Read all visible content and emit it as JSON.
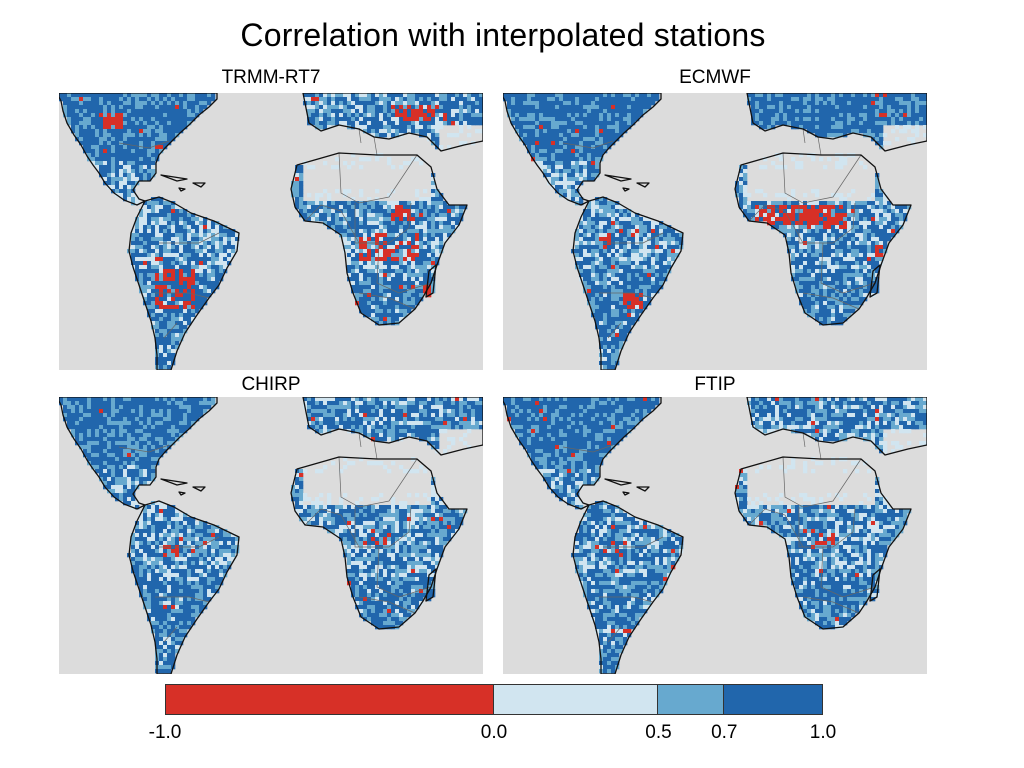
{
  "title": "Correlation with interpolated stations",
  "panels": [
    {
      "label": "TRMM-RT7",
      "red": "high"
    },
    {
      "label": "ECMWF",
      "red": "africa"
    },
    {
      "label": "CHIRP",
      "red": "low"
    },
    {
      "label": "FTIP",
      "red": "low"
    }
  ],
  "colorbar": {
    "bins": [
      {
        "from": -1.0,
        "to": 0.0,
        "color": "#d73027"
      },
      {
        "from": 0.0,
        "to": 0.5,
        "color": "#d1e5f0"
      },
      {
        "from": 0.5,
        "to": 0.7,
        "color": "#67a9cf"
      },
      {
        "from": 0.7,
        "to": 1.0,
        "color": "#2166ac"
      }
    ],
    "tick_labels": [
      "-1.0",
      "0.0",
      "0.5",
      "0.7",
      "1.0"
    ]
  },
  "colors": {
    "ocean": "#dcdcdc",
    "coastline": "#111111",
    "border": "#666666"
  }
}
